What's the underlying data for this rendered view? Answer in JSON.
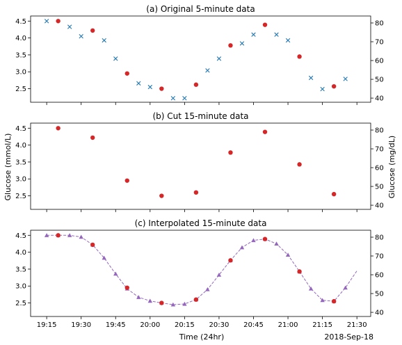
{
  "shared": {
    "left_ylabel": "Glucose (mmol/L)",
    "right_ylabel": "Glucose (mg/dL)",
    "xlabel": "Time (24hr)",
    "date_label": "2018-Sep-18",
    "x_range_minutes": [
      "19:08",
      "21:36"
    ],
    "x_ticks": [
      "19:15",
      "19:30",
      "19:45",
      "20:00",
      "20:15",
      "20:30",
      "20:45",
      "21:00",
      "21:15",
      "21:30"
    ],
    "y_left_ticks": [
      2.5,
      3.0,
      3.5,
      4.0,
      4.5
    ],
    "y_right_ticks": [
      40,
      50,
      60,
      70,
      80
    ],
    "colors": {
      "red": "#d62728",
      "blue": "#1f77b4",
      "purple": "#9467bd"
    }
  },
  "chart_data": [
    {
      "type": "scatter",
      "title": "(a) Original 5-minute data",
      "ylim": [
        2.1,
        4.65
      ],
      "ylim_right": [
        37.8,
        83.7
      ],
      "series": [
        {
          "marker": "x",
          "color": "#1f77b4",
          "x": [
            "19:15",
            "19:25",
            "19:30",
            "19:40",
            "19:45",
            "19:55",
            "20:00",
            "20:10",
            "20:15",
            "20:25",
            "20:30",
            "20:40",
            "20:45",
            "20:55",
            "21:00",
            "21:10",
            "21:15",
            "21:25"
          ],
          "y": [
            4.5,
            4.33,
            4.05,
            3.93,
            3.39,
            2.66,
            2.55,
            2.22,
            2.22,
            3.04,
            3.39,
            3.84,
            4.1,
            4.1,
            3.93,
            2.82,
            2.49,
            2.79
          ]
        },
        {
          "marker": "o",
          "color": "#d62728",
          "x": [
            "19:20",
            "19:35",
            "19:50",
            "20:05",
            "20:20",
            "20:35",
            "20:50",
            "21:05",
            "21:20"
          ],
          "y": [
            4.5,
            4.22,
            2.95,
            2.5,
            2.62,
            3.78,
            4.39,
            3.45,
            2.57
          ]
        }
      ]
    },
    {
      "type": "scatter",
      "title": "(b) Cut 15-minute data",
      "ylim": [
        2.1,
        4.65
      ],
      "ylim_right": [
        37.8,
        83.7
      ],
      "series": [
        {
          "marker": "o",
          "color": "#d62728",
          "x": [
            "19:20",
            "19:35",
            "19:50",
            "20:05",
            "20:20",
            "20:35",
            "20:50",
            "21:05",
            "21:20"
          ],
          "y": [
            4.5,
            4.22,
            2.95,
            2.5,
            2.6,
            3.78,
            4.39,
            3.43,
            2.55
          ]
        }
      ]
    },
    {
      "type": "line",
      "title": "(c) Interpolated 15-minute data",
      "ylim": [
        2.1,
        4.65
      ],
      "ylim_right": [
        37.8,
        83.7
      ],
      "series": [
        {
          "marker": "^",
          "color": "#9467bd",
          "linestyle": "dashed",
          "x": [
            "19:15",
            "19:20",
            "19:25",
            "19:30",
            "19:35",
            "19:40",
            "19:45",
            "19:50",
            "19:55",
            "20:00",
            "20:05",
            "20:10",
            "20:15",
            "20:20",
            "20:25",
            "20:30",
            "20:35",
            "20:40",
            "20:45",
            "20:50",
            "20:55",
            "21:00",
            "21:05",
            "21:10",
            "21:15",
            "21:20",
            "21:25"
          ],
          "y": [
            4.5,
            4.5,
            4.5,
            4.45,
            4.22,
            3.83,
            3.36,
            2.92,
            2.67,
            2.56,
            2.5,
            2.45,
            2.47,
            2.6,
            2.9,
            3.33,
            3.76,
            4.14,
            4.35,
            4.39,
            4.25,
            3.92,
            3.43,
            2.92,
            2.58,
            2.55,
            2.95
          ],
          "line_extends_to": {
            "x": "21:30",
            "y": 3.45
          }
        },
        {
          "marker": "o",
          "color": "#d62728",
          "x": [
            "19:20",
            "19:35",
            "19:50",
            "20:05",
            "20:20",
            "20:35",
            "20:50",
            "21:05",
            "21:20"
          ],
          "y": [
            4.5,
            4.22,
            2.95,
            2.5,
            2.6,
            3.76,
            4.39,
            3.43,
            2.55
          ]
        }
      ]
    }
  ]
}
